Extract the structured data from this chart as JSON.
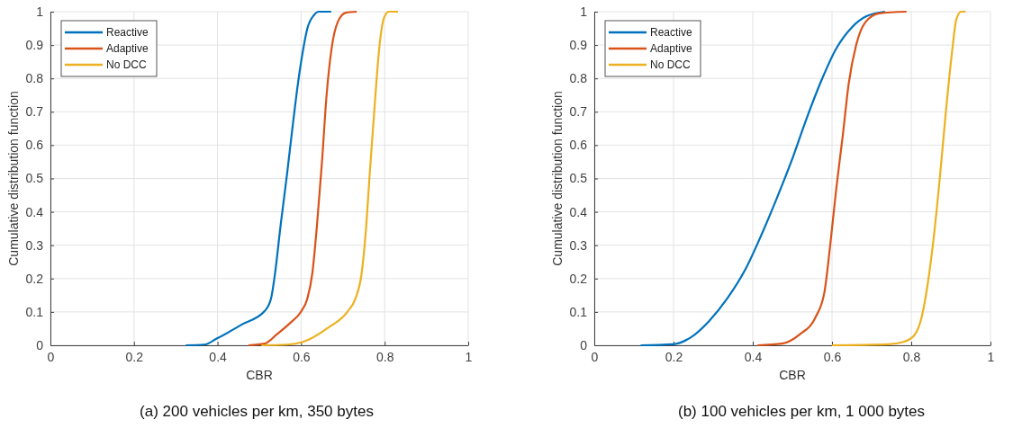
{
  "chart_data": [
    {
      "type": "line",
      "xlabel": "CBR",
      "ylabel": "Cumulative distribution function",
      "xlim": [
        0,
        1
      ],
      "ylim": [
        0,
        1
      ],
      "xticks": [
        0,
        0.2,
        0.4,
        0.6,
        0.8,
        1
      ],
      "yticks": [
        0,
        0.1,
        0.2,
        0.3,
        0.4,
        0.5,
        0.6,
        0.7,
        0.8,
        0.9,
        1
      ],
      "grid": true,
      "legend": "top left",
      "marker": "none",
      "line_style": "solid",
      "annotations": [
        "(a) 200 vehicles per km, 350 bytes"
      ],
      "series": [
        {
          "name": "Reactive",
          "color": "#0072bd",
          "x": [
            0.324,
            0.368,
            0.398,
            0.459,
            0.513,
            0.528,
            0.537,
            0.551,
            0.566,
            0.581,
            0.593,
            0.604,
            0.615,
            0.631,
            0.642,
            0.672
          ],
          "values": [
            0,
            0.002,
            0.02,
            0.063,
            0.103,
            0.14,
            0.21,
            0.36,
            0.51,
            0.67,
            0.79,
            0.88,
            0.95,
            0.99,
            1,
            1
          ]
        },
        {
          "name": "Adaptive",
          "color": "#d95319",
          "x": [
            0.474,
            0.513,
            0.543,
            0.574,
            0.6,
            0.615,
            0.627,
            0.638,
            0.65,
            0.661,
            0.673,
            0.688,
            0.707,
            0.733
          ],
          "values": [
            0,
            0.005,
            0.034,
            0.067,
            0.101,
            0.14,
            0.217,
            0.36,
            0.55,
            0.75,
            0.89,
            0.97,
            0.997,
            1
          ]
        },
        {
          "name": "No DCC",
          "color": "#edb120",
          "x": [
            0.505,
            0.566,
            0.604,
            0.665,
            0.711,
            0.73,
            0.745,
            0.756,
            0.764,
            0.775,
            0.787,
            0.798,
            0.81,
            0.832
          ],
          "values": [
            0,
            0.002,
            0.01,
            0.053,
            0.101,
            0.14,
            0.217,
            0.36,
            0.51,
            0.7,
            0.89,
            0.98,
            1,
            1
          ]
        }
      ]
    },
    {
      "type": "line",
      "xlabel": "CBR",
      "ylabel": "Cumulative distribution function",
      "xlim": [
        0,
        1
      ],
      "ylim": [
        0,
        1
      ],
      "xticks": [
        0,
        0.2,
        0.4,
        0.6,
        0.8,
        1
      ],
      "yticks": [
        0,
        0.1,
        0.2,
        0.3,
        0.4,
        0.5,
        0.6,
        0.7,
        0.8,
        0.9,
        1
      ],
      "grid": true,
      "legend": "top left",
      "marker": "none",
      "line_style": "solid",
      "annotations": [
        "(b) 100 vehicles per km, 1 000 bytes"
      ],
      "series": [
        {
          "name": "Reactive",
          "color": "#0072bd",
          "x": [
            0.117,
            0.198,
            0.244,
            0.29,
            0.336,
            0.382,
            0.42,
            0.458,
            0.497,
            0.535,
            0.573,
            0.611,
            0.65,
            0.688,
            0.734
          ],
          "values": [
            0,
            0.003,
            0.024,
            0.073,
            0.141,
            0.229,
            0.326,
            0.433,
            0.55,
            0.677,
            0.793,
            0.89,
            0.953,
            0.987,
            1
          ]
        },
        {
          "name": "Adaptive",
          "color": "#d95319",
          "x": [
            0.412,
            0.474,
            0.52,
            0.558,
            0.581,
            0.596,
            0.611,
            0.627,
            0.642,
            0.661,
            0.684,
            0.719,
            0.788
          ],
          "values": [
            0,
            0.005,
            0.034,
            0.083,
            0.16,
            0.306,
            0.472,
            0.627,
            0.783,
            0.9,
            0.968,
            0.995,
            1
          ]
        },
        {
          "name": "No DCC",
          "color": "#edb120",
          "x": [
            0.6,
            0.742,
            0.78,
            0.807,
            0.826,
            0.841,
            0.857,
            0.872,
            0.887,
            0.903,
            0.914,
            0.926,
            0.937
          ],
          "values": [
            0,
            0.003,
            0.01,
            0.029,
            0.083,
            0.18,
            0.326,
            0.5,
            0.695,
            0.88,
            0.978,
            1,
            1
          ]
        }
      ]
    }
  ]
}
